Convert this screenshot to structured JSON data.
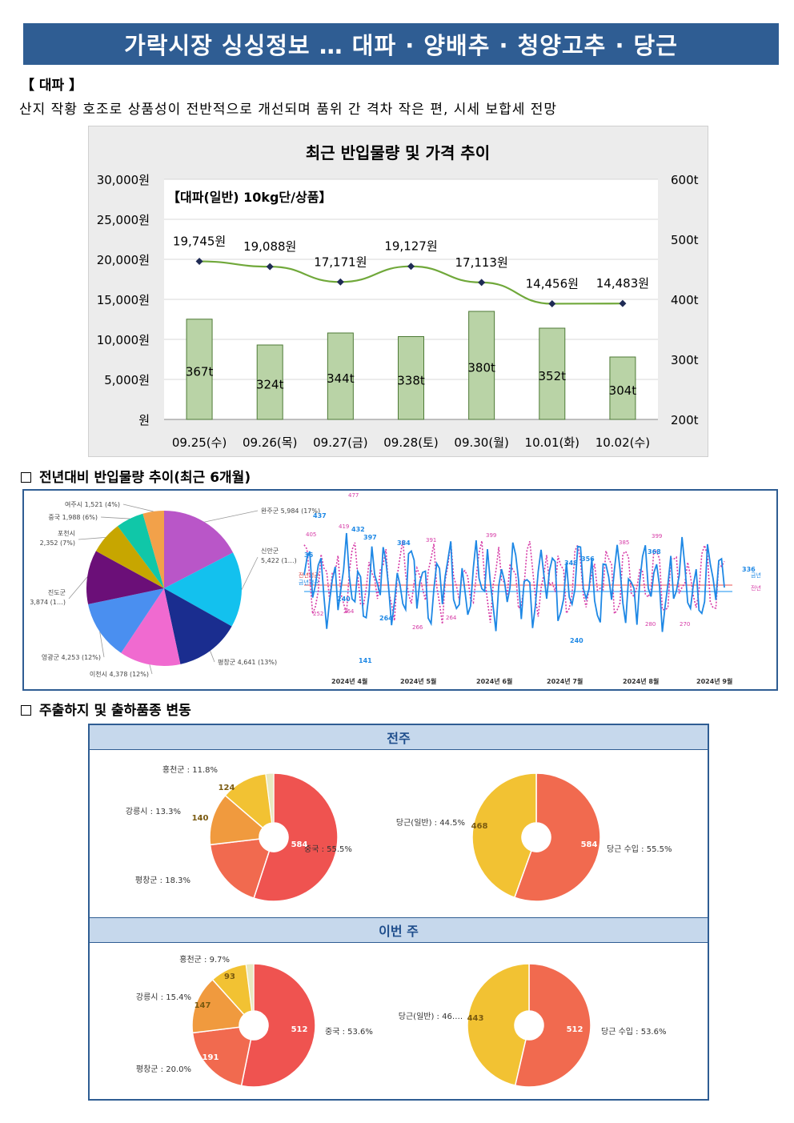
{
  "header": {
    "title": "가락시장 싱싱정보 … 대파 · 양배추 · 청양고추 · 당근"
  },
  "section1": {
    "title": "【 대파 】",
    "description": "산지 작황 호조로 상품성이 전반적으로 개선되며 품위 간 격차 작은 편, 시세 보합세 전망"
  },
  "chart_data": [
    {
      "type": "bar",
      "title": "최근 반입물량 및 가격 추이",
      "subtitle": "【대파(일반) 10kg단/상품】",
      "categories": [
        "09.25(수)",
        "09.26(목)",
        "09.27(금)",
        "09.28(토)",
        "09.30(월)",
        "10.01(화)",
        "10.02(수)"
      ],
      "series": [
        {
          "kind": "bar",
          "axis": "right",
          "values": [
            367,
            324,
            344,
            338,
            380,
            352,
            304
          ],
          "labels": [
            "367t",
            "324t",
            "344t",
            "338t",
            "380t",
            "352t",
            "304t"
          ]
        },
        {
          "kind": "line",
          "axis": "left",
          "values": [
            19745,
            19088,
            17171,
            19127,
            17113,
            14456,
            14483
          ],
          "labels": [
            "19,745원",
            "19,088원",
            "17,171원",
            "19,127원",
            "17,113원",
            "14,456원",
            "14,483원"
          ]
        }
      ],
      "left_axis": {
        "ylim": [
          0,
          30000
        ],
        "ticks": [
          "원",
          "5,000원",
          "10,000원",
          "15,000원",
          "20,000원",
          "25,000원",
          "30,000원"
        ]
      },
      "right_axis": {
        "ylim": [
          200,
          600
        ],
        "ticks": [
          "200t",
          "300t",
          "400t",
          "500t",
          "600t"
        ]
      },
      "colors": {
        "bar": "#b9d3a6",
        "bar_border": "#4e7a36",
        "line": "#70a83a",
        "marker": "#1f2b55"
      }
    },
    {
      "type": "pie",
      "labels": [
        "완주군 5,984 (17%)",
        "신안군 5,422 (1…)",
        "평창군 4,641 (13%)",
        "이천시 4,378 (12%)",
        "영광군 4,253 (12%)",
        "진도군 3,874 (1…)",
        "포천시 2,352 (7%)",
        "중국 1,988 (6%)",
        "여주시 1,521 (4%)"
      ],
      "values": [
        5984,
        5422,
        4641,
        4378,
        4253,
        3874,
        2352,
        1988,
        1521
      ],
      "colors": [
        "#b956c8",
        "#13c1ee",
        "#1a2d8f",
        "#f06ad0",
        "#4a8ff0",
        "#6b0f78",
        "#c7a600",
        "#10c7a8",
        "#f2a14a"
      ]
    },
    {
      "type": "line",
      "x_labels": [
        "2024년 4월",
        "2024년 5월",
        "2024년 6월",
        "2024년 7월",
        "2024년 8월",
        "2024년 9월"
      ],
      "series": [
        {
          "name": "금년",
          "color": "#1e88e5"
        },
        {
          "name": "전년",
          "color": "#d63aa6"
        }
      ],
      "labels_blue": [
        "437",
        "36",
        "432",
        "397",
        "240",
        "264",
        "141",
        "384",
        "348",
        "356",
        "240",
        "368",
        "336"
      ],
      "labels_pink": [
        "477",
        "405",
        "419",
        "391",
        "399",
        "385",
        "399",
        "252",
        "264",
        "266",
        "264",
        "280",
        "270"
      ],
      "avg_labels": [
        "전년평균",
        "금년평균"
      ]
    },
    {
      "type": "pie",
      "group": "전주",
      "labels": [
        "중국 : 55.5%",
        "평창군 : 18.3%",
        "강릉시 : 13.3%",
        "홍천군 : 11.8%"
      ],
      "values": [
        584,
        192,
        140,
        124
      ],
      "value_labels": [
        "584",
        "192",
        "140",
        "124"
      ],
      "colors": [
        "#ef5350",
        "#f16a4f",
        "#f09a3e",
        "#f2c233",
        "#e8e8c0"
      ]
    },
    {
      "type": "pie",
      "group": "전주",
      "labels": [
        "당근 수입 : 55.5%",
        "당근(일반) : 44.5%"
      ],
      "values": [
        584,
        468
      ],
      "value_labels": [
        "584",
        "468"
      ],
      "colors": [
        "#f16a4f",
        "#f2c233"
      ]
    },
    {
      "type": "pie",
      "group": "이번 주",
      "labels": [
        "중국 : 53.6%",
        "평창군 : 20.0%",
        "강릉시 : 15.4%",
        "홍천군 : 9.7%"
      ],
      "values": [
        512,
        191,
        147,
        93
      ],
      "value_labels": [
        "512",
        "191",
        "147",
        "93"
      ],
      "colors": [
        "#ef5350",
        "#f16a4f",
        "#f09a3e",
        "#f2c233",
        "#e8e8c0"
      ]
    },
    {
      "type": "pie",
      "group": "이번 주",
      "labels": [
        "당근 수입 : 53.6%",
        "당근(일반) : 46…."
      ],
      "values": [
        512,
        443
      ],
      "value_labels": [
        "512",
        "443"
      ],
      "colors": [
        "#f16a4f",
        "#f2c233"
      ]
    }
  ],
  "section2": {
    "title": "전년대비 반입물량 추이(최근 6개월)"
  },
  "section3": {
    "title": "주출하지 및 출하품종 변동",
    "band_prev": "전주",
    "band_this": "이번 주"
  }
}
